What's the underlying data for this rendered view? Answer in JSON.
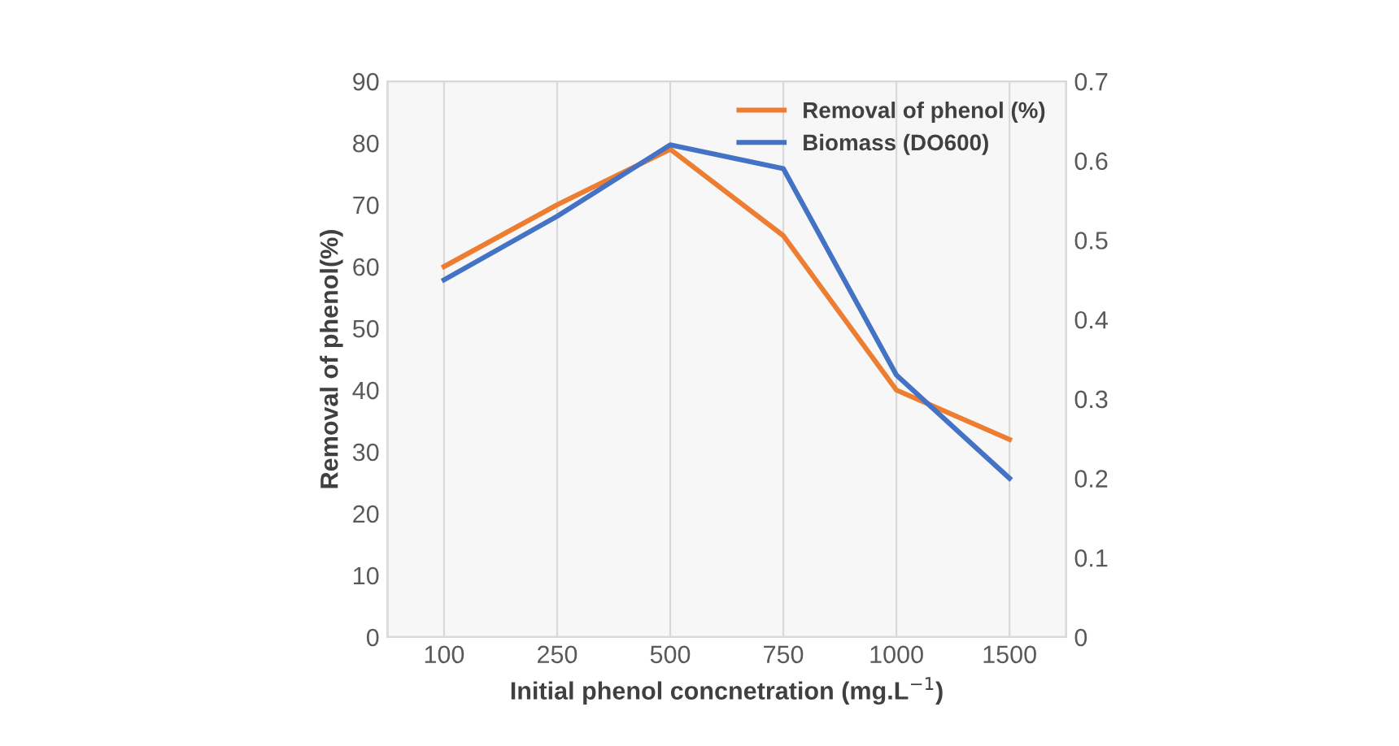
{
  "chart_data": {
    "type": "line",
    "xlabel": "Initial phenol concnetration (mg.L$^{−1}$)",
    "ylabel": "Removal of phenol(%)",
    "categories": [
      "100",
      "250",
      "500",
      "750",
      "1000",
      "1500"
    ],
    "series": [
      {
        "name": "Removal of phenol (%)",
        "color": "#ed7d31",
        "values": [
          60,
          70,
          79,
          65,
          40,
          32
        ]
      },
      {
        "name": "Biomass (DO600)",
        "color": "#4472c4",
        "values": [
          0.45,
          0.53,
          0.62,
          0.59,
          0.33,
          0.2
        ],
        "axis": "y2"
      }
    ],
    "ylim": [
      0,
      90
    ],
    "yticks": [
      0,
      10,
      20,
      30,
      40,
      50,
      60,
      70,
      80,
      90
    ],
    "y2lim": [
      0,
      0.7
    ],
    "y2ticks": [
      0,
      0.1,
      0.2,
      0.3,
      0.4,
      0.5,
      0.6,
      0.7
    ],
    "grid": "x",
    "legend": "top right",
    "marker": "none",
    "line_style": "solid"
  }
}
